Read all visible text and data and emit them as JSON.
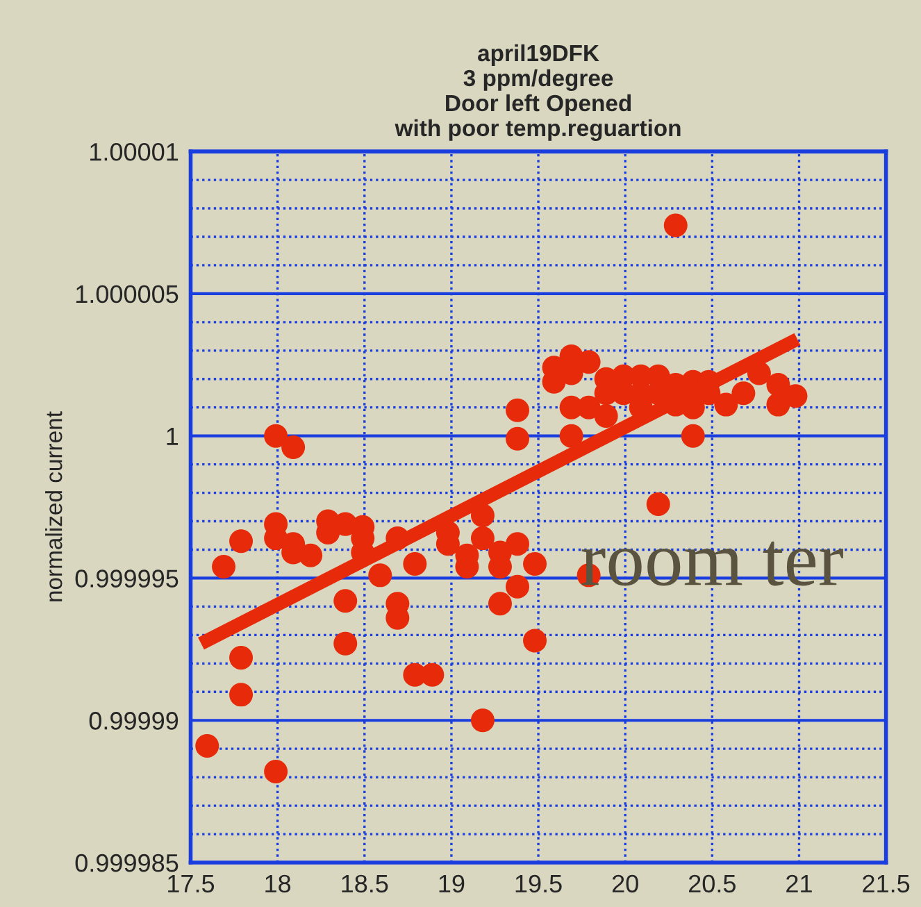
{
  "chart_data": {
    "type": "scatter",
    "title": "april19DFK\n3 ppm/degree\nDoor left Opened\nwith poor temp.reguartion",
    "ylabel": "normalized current",
    "annotations": [
      "room ter"
    ],
    "series": [
      {
        "color": "#e62a0a",
        "marker": "circle",
        "x": [
          17.595,
          17.69,
          17.79,
          17.79,
          17.79,
          17.99,
          18.09,
          17.99,
          17.99,
          18.09,
          18.09,
          18.19,
          17.99,
          18.29,
          18.29,
          18.39,
          18.49,
          18.49,
          18.49,
          18.59,
          18.39,
          18.39,
          18.69,
          18.79,
          18.69,
          18.69,
          18.79,
          18.89,
          18.98,
          18.98,
          19.09,
          19.09,
          19.18,
          19.18,
          19.18,
          19.28,
          19.28,
          19.28,
          19.38,
          19.38,
          19.38,
          19.38,
          19.48,
          19.48,
          19.59,
          19.59,
          19.69,
          19.69,
          19.79,
          19.69,
          19.79,
          19.69,
          19.79,
          19.89,
          19.89,
          19.89,
          19.99,
          19.99,
          20.09,
          20.09,
          20.09,
          20.19,
          20.19,
          20.19,
          20.29,
          20.29,
          20.29,
          20.39,
          20.39,
          20.39,
          20.48,
          20.48,
          20.58,
          20.68,
          20.77,
          20.88,
          20.88,
          20.98
        ],
        "values": [
          0.9999891,
          0.9999954,
          0.9999963,
          0.9999922,
          0.9999909,
          1.0,
          0.9999996,
          0.9999969,
          0.9999964,
          0.9999962,
          0.9999959,
          0.9999958,
          0.9999882,
          0.999997,
          0.9999966,
          0.9999969,
          0.9999968,
          0.9999964,
          0.9999959,
          0.9999951,
          0.9999942,
          0.9999927,
          0.9999964,
          0.9999955,
          0.9999941,
          0.9999936,
          0.9999916,
          0.9999916,
          0.9999966,
          0.9999962,
          0.9999958,
          0.9999954,
          0.9999972,
          0.9999964,
          0.99999,
          0.9999959,
          0.9999954,
          0.9999941,
          1.0000009,
          0.9999999,
          0.9999962,
          0.9999947,
          0.9999955,
          0.9999928,
          1.0000024,
          1.0000019,
          1.0000028,
          1.0000022,
          1.0000026,
          1.000001,
          1.000001,
          1.0,
          0.9999951,
          1.000002,
          1.0000015,
          1.0000007,
          1.0000021,
          1.0000015,
          1.0000021,
          1.0000015,
          1.000001,
          1.0000021,
          1.0000015,
          0.9999976,
          1.0000074,
          1.0000018,
          1.0000011,
          1.0000019,
          1.000001,
          1.0,
          1.0000019,
          1.0000015,
          1.0000011,
          1.0000015,
          1.0000022,
          1.0000018,
          1.0000011,
          1.0000014
        ]
      },
      {
        "type": "line",
        "color": "#e62a0a",
        "line_style": "solid",
        "marker": "none",
        "x": [
          17.56,
          20.99
        ],
        "values": [
          0.9999927,
          1.0000034
        ]
      }
    ],
    "xlim": [
      17.5,
      21.5
    ],
    "xticks": [
      17.5,
      18,
      18.5,
      19,
      19.5,
      20,
      20.5,
      21,
      21.5
    ],
    "ylim": [
      0.999985,
      1.00001
    ],
    "yticks": [
      0.999985,
      0.99999,
      0.999995,
      1,
      1.000005,
      1.00001
    ],
    "grid": true,
    "legend": false
  }
}
